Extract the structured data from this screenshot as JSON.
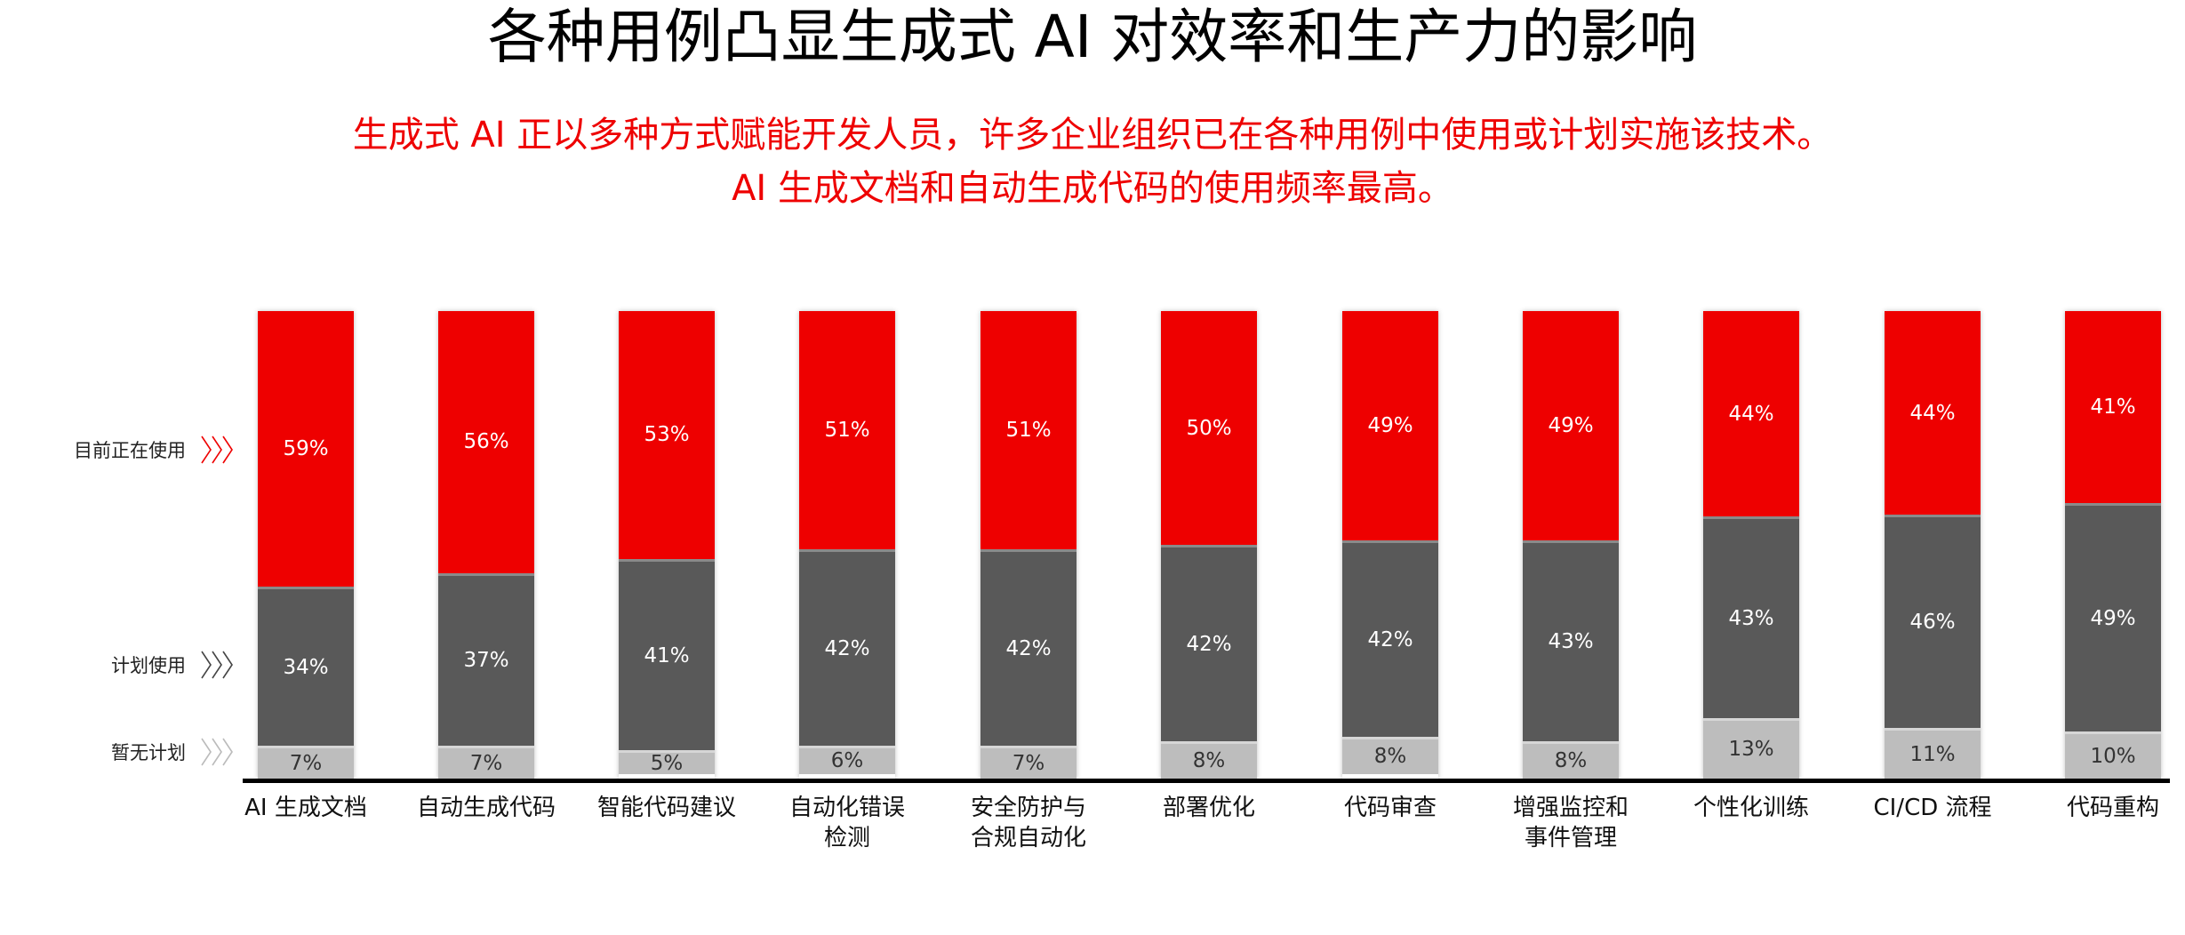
{
  "header": {
    "title": "各种用例凸显生成式 AI 对效率和生产力的影响",
    "subtitle_line1": "生成式 AI 正以多种方式赋能开发人员，许多企业组织已在各种用例中使用或计划实施该技术。",
    "subtitle_line2": "AI 生成文档和自动生成代码的使用频率最高。"
  },
  "legend": [
    {
      "label": "目前正在使用",
      "color": "#ee0000",
      "icon": "triple-chevron-right-icon"
    },
    {
      "label": "计划使用",
      "color": "#595959",
      "icon": "triple-chevron-right-icon"
    },
    {
      "label": "暂无计划",
      "color": "#bdbdbd",
      "icon": "triple-chevron-right-icon"
    }
  ],
  "colors": {
    "using": "#ee0000",
    "planned": "#595959",
    "none": "#bdbdbd",
    "title": "#000000",
    "subtitle": "#ee0000"
  },
  "chart_data": {
    "type": "bar",
    "stacked": true,
    "title": "各种用例凸显生成式 AI 对效率和生产力的影响",
    "subtitle": "生成式 AI 正以多种方式赋能开发人员，许多企业组织已在各种用例中使用或计划实施该技术。AI 生成文档和自动生成代码的使用频率最高。",
    "xlabel": "",
    "ylabel": "",
    "ylim": [
      0,
      100
    ],
    "grid": false,
    "legend_position": "left",
    "categories": [
      "AI 生成文档",
      "自动生成代码",
      "智能代码建议",
      "自动化错误\n检测",
      "安全防护与\n合规自动化",
      "部署优化",
      "代码审查",
      "增强监控和\n事件管理",
      "个性化训练",
      "CI/CD 流程",
      "代码重构"
    ],
    "series": [
      {
        "name": "目前正在使用",
        "color": "#ee0000",
        "values": [
          59,
          56,
          53,
          51,
          51,
          50,
          49,
          49,
          44,
          44,
          41
        ]
      },
      {
        "name": "计划使用",
        "color": "#595959",
        "values": [
          34,
          37,
          41,
          42,
          42,
          42,
          42,
          43,
          43,
          46,
          49
        ]
      },
      {
        "name": "暂无计划",
        "color": "#bdbdbd",
        "values": [
          7,
          7,
          5,
          6,
          7,
          8,
          8,
          8,
          13,
          11,
          10
        ]
      }
    ]
  },
  "labels": {
    "using": [
      "59%",
      "56%",
      "53%",
      "51%",
      "51%",
      "50%",
      "49%",
      "49%",
      "44%",
      "44%",
      "41%"
    ],
    "planned": [
      "34%",
      "37%",
      "41%",
      "42%",
      "42%",
      "42%",
      "42%",
      "43%",
      "43%",
      "46%",
      "49%"
    ],
    "none": [
      "7%",
      "7%",
      "5%",
      "6%",
      "7%",
      "8%",
      "8%",
      "8%",
      "13%",
      "11%",
      "10%"
    ]
  }
}
